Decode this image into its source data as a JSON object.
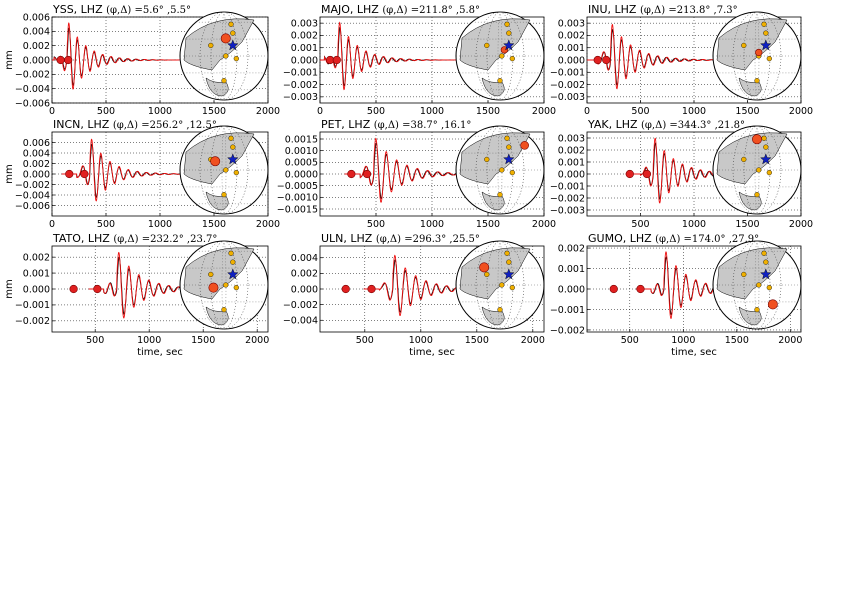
{
  "chart_data": [
    {
      "type": "line",
      "station": "YSS",
      "title_prefix": "YSS, LHZ ",
      "title_math": "(φ,Δ) =5.6° ,5.5°",
      "xlim": [
        0,
        2000
      ],
      "ylim": [
        -0.006,
        0.006
      ],
      "xticks": [
        "0",
        "500",
        "1000",
        "1500",
        "2000"
      ],
      "yticks": [
        "0.006",
        "0.004",
        "0.002",
        "0.000",
        "−0.002",
        "−0.004",
        "−0.006"
      ],
      "ylabel": "mm",
      "xlabel": "",
      "signal": {
        "t0": 140,
        "amp": 0.0054,
        "freq": 0.013,
        "decay": 0.006,
        "end": 1150
      },
      "markers": [
        80,
        150
      ],
      "station_dot": [
        0.52,
        0.3,
        14
      ],
      "star": [
        0.6,
        0.38
      ]
    },
    {
      "type": "line",
      "station": "MAJO",
      "title_prefix": "MAJO, LHZ ",
      "title_math": "(φ,Δ) =211.8° ,5.8°",
      "xlim": [
        0,
        2000
      ],
      "ylim": [
        -0.0035,
        0.0035
      ],
      "xticks": [
        "0",
        "500",
        "1000",
        "1500",
        "2000"
      ],
      "yticks": [
        "0.003",
        "0.002",
        "0.001",
        "0.000",
        "−0.001",
        "−0.002",
        "−0.003"
      ],
      "ylabel": "",
      "xlabel": "",
      "signal": {
        "t0": 160,
        "amp": 0.0032,
        "freq": 0.013,
        "decay": 0.006,
        "end": 1200
      },
      "markers": [
        90,
        150
      ],
      "station_dot": [
        0.55,
        0.43,
        10
      ],
      "star": [
        0.6,
        0.38
      ]
    },
    {
      "type": "line",
      "station": "INU",
      "title_prefix": "INU, LHZ ",
      "title_math": "(φ,Δ) =213.8° ,7.3°",
      "xlim": [
        0,
        2000
      ],
      "ylim": [
        -0.0035,
        0.0035
      ],
      "xticks": [
        "0",
        "500",
        "1000",
        "1500",
        "2000"
      ],
      "yticks": [
        "0.003",
        "0.002",
        "0.001",
        "0.000",
        "−0.001",
        "−0.002",
        "−0.003"
      ],
      "ylabel": "",
      "xlabel": "",
      "signal": {
        "t0": 220,
        "amp": 0.003,
        "freq": 0.012,
        "decay": 0.005,
        "end": 1250
      },
      "markers": [
        100,
        180
      ],
      "station_dot": [
        0.52,
        0.46,
        10
      ],
      "star": [
        0.6,
        0.38
      ]
    },
    {
      "type": "line",
      "station": "INCN",
      "title_prefix": "INCN, LHZ ",
      "title_math": "(φ,Δ) =256.2° ,12.5°",
      "xlim": [
        0,
        2000
      ],
      "ylim": [
        -0.008,
        0.008
      ],
      "xticks": [
        "0",
        "500",
        "1000",
        "1500",
        "2000"
      ],
      "yticks": [
        "0.006",
        "0.004",
        "0.002",
        "0.000",
        "−0.002",
        "−0.004",
        "−0.006"
      ],
      "ylabel": "mm",
      "xlabel": "",
      "signal": {
        "t0": 350,
        "amp": 0.007,
        "freq": 0.012,
        "decay": 0.006,
        "end": 1200
      },
      "markers": [
        160,
        300
      ],
      "station_dot": [
        0.4,
        0.4,
        14
      ],
      "star": [
        0.6,
        0.38
      ]
    },
    {
      "type": "line",
      "station": "PET",
      "title_prefix": "PET, LHZ ",
      "title_math": "(φ,Δ) =38.7° ,16.1°",
      "xlim": [
        0,
        2000
      ],
      "ylim": [
        -0.0018,
        0.0018
      ],
      "xticks": [
        "500",
        "1000",
        "1500",
        "2000"
      ],
      "yticks": [
        "0.0015",
        "0.0010",
        "0.0005",
        "0.0000",
        "−0.0005",
        "−0.0010",
        "−0.0015"
      ],
      "ylabel": "",
      "xlabel": "",
      "signal": {
        "t0": 480,
        "amp": 0.0016,
        "freq": 0.011,
        "decay": 0.005,
        "end": 1250
      },
      "markers": [
        280,
        420
      ],
      "station_dot": [
        0.78,
        0.22,
        12
      ],
      "star": [
        0.6,
        0.38
      ]
    },
    {
      "type": "line",
      "station": "YAK",
      "title_prefix": "YAK, LHZ ",
      "title_math": "(φ,Δ) =344.3° ,21.8°",
      "xlim": [
        0,
        2000
      ],
      "ylim": [
        -0.0035,
        0.0035
      ],
      "xticks": [
        "500",
        "1000",
        "1500",
        "2000"
      ],
      "yticks": [
        "0.003",
        "0.002",
        "0.001",
        "0.000",
        "−0.001",
        "−0.002",
        "−0.003"
      ],
      "ylabel": "",
      "xlabel": "",
      "signal": {
        "t0": 620,
        "amp": 0.0031,
        "freq": 0.012,
        "decay": 0.005,
        "end": 1300
      },
      "markers": [
        400,
        560
      ],
      "station_dot": [
        0.5,
        0.15,
        14
      ],
      "star": [
        0.6,
        0.38
      ]
    },
    {
      "type": "line",
      "station": "TATO",
      "title_prefix": "TATO, LHZ ",
      "title_math": "(φ,Δ) =232.2° ,23.7°",
      "xlim": [
        100,
        2100
      ],
      "ylim": [
        -0.0027,
        0.0027
      ],
      "xticks": [
        "500",
        "1000",
        "1500",
        "2000"
      ],
      "yticks": [
        "0.002",
        "0.001",
        "0.000",
        "−0.001",
        "−0.002"
      ],
      "ylabel": "mm",
      "xlabel": "time, sec",
      "signal": {
        "t0": 700,
        "amp": 0.0024,
        "freq": 0.011,
        "decay": 0.005,
        "end": 1300
      },
      "markers": [
        300,
        520
      ],
      "station_dot": [
        0.38,
        0.53,
        14
      ],
      "star": [
        0.6,
        0.38
      ]
    },
    {
      "type": "line",
      "station": "ULN",
      "title_prefix": "ULN, LHZ ",
      "title_math": "(φ,Δ) =296.3° ,25.5°",
      "xlim": [
        100,
        2100
      ],
      "ylim": [
        -0.0055,
        0.0055
      ],
      "xticks": [
        "500",
        "1000",
        "1500",
        "2000"
      ],
      "yticks": [
        "0.004",
        "0.002",
        "0.000",
        "−0.002",
        "−0.004"
      ],
      "ylabel": "",
      "xlabel": "time, sec",
      "signal": {
        "t0": 750,
        "amp": 0.0045,
        "freq": 0.011,
        "decay": 0.005,
        "end": 1300
      },
      "markers": [
        330,
        560
      ],
      "station_dot": [
        0.32,
        0.3,
        14
      ],
      "star": [
        0.6,
        0.38
      ]
    },
    {
      "type": "line",
      "station": "GUMO",
      "title_prefix": "GUMO, LHZ ",
      "title_math": "(φ,Δ) =174.0° ,27.9°",
      "xlim": [
        100,
        2100
      ],
      "ylim": [
        -0.0021,
        0.0021
      ],
      "xticks": [
        "500",
        "1000",
        "1500",
        "2000"
      ],
      "yticks": [
        "0.002",
        "0.001",
        "0.000",
        "−0.001",
        "−0.002"
      ],
      "ylabel": "",
      "xlabel": "time, sec",
      "signal": {
        "t0": 820,
        "amp": 0.0019,
        "freq": 0.011,
        "decay": 0.005,
        "end": 1350
      },
      "markers": [
        350,
        600
      ],
      "station_dot": [
        0.68,
        0.72,
        14
      ],
      "star": [
        0.6,
        0.38
      ]
    }
  ],
  "colors": {
    "observed": "#000000",
    "synthetic": "#ee1111",
    "marker": "#e02020",
    "station": "#f05020",
    "star": "#1020c0",
    "dots": "#f0b000",
    "land": "#c8c8c8"
  }
}
